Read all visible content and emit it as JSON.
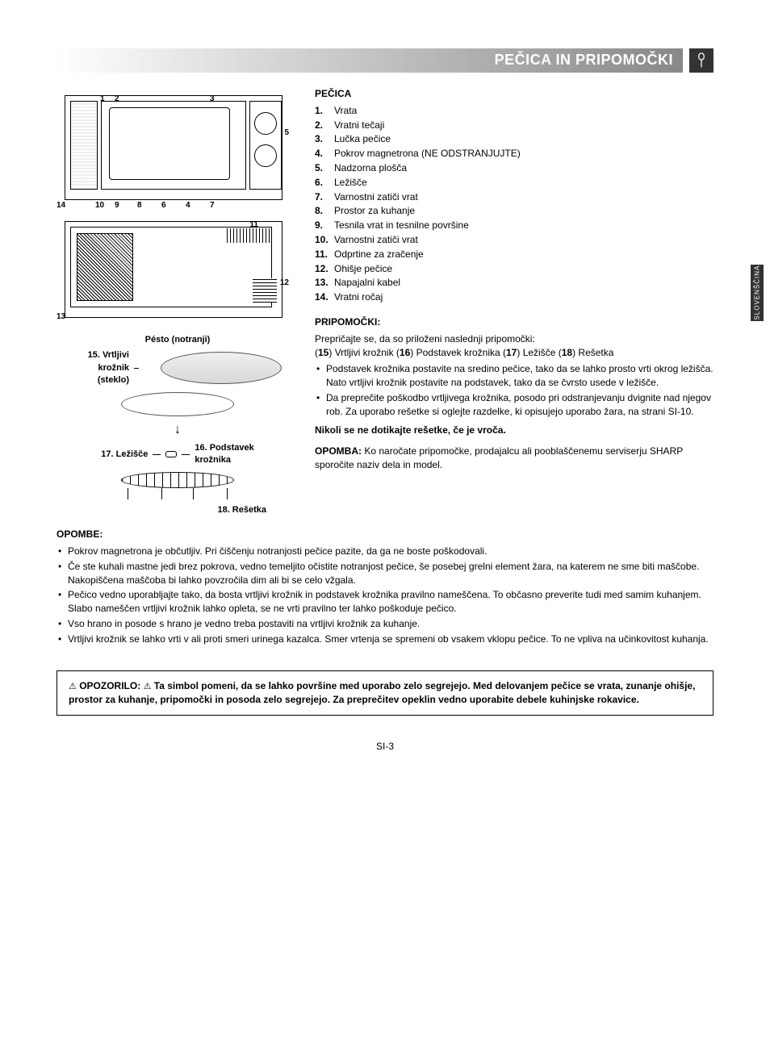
{
  "header": {
    "title": "PEČICA IN PRIPOMOČKI"
  },
  "sideTab": "SLOVENŠČINA",
  "oven": {
    "heading": "PEČICA",
    "items": [
      {
        "n": "1.",
        "t": "Vrata"
      },
      {
        "n": "2.",
        "t": "Vratni tečaji"
      },
      {
        "n": "3.",
        "t": "Lučka pečice"
      },
      {
        "n": "4.",
        "t": "Pokrov magnetrona (NE ODSTRANJUJTE)"
      },
      {
        "n": "5.",
        "t": "Nadzorna plošča"
      },
      {
        "n": "6.",
        "t": "Ležišče"
      },
      {
        "n": "7.",
        "t": "Varnostni zatiči vrat"
      },
      {
        "n": "8.",
        "t": "Prostor za kuhanje"
      },
      {
        "n": "9.",
        "t": "Tesnila vrat in tesnilne površine"
      },
      {
        "n": "10.",
        "t": "Varnostni zatiči vrat"
      },
      {
        "n": "11.",
        "t": "Odprtine za zračenje"
      },
      {
        "n": "12.",
        "t": "Ohišje pečice"
      },
      {
        "n": "13.",
        "t": "Napajalni kabel"
      },
      {
        "n": "14.",
        "t": "Vratni ročaj"
      }
    ]
  },
  "accessories": {
    "heading": "PRIPOMOČKI:",
    "intro1": "Prepričajte se, da so priloženi naslednji pripomočki:",
    "intro2": "(15) Vrtljivi krožnik (16) Podstavek krožnika (17) Ležišče (18) Rešetka",
    "bullets": [
      "Podstavek krožnika postavite na sredino pečice, tako da se lahko prosto vrti okrog ležišča. Nato vrtljivi krožnik postavite na podstavek, tako da se čvrsto usede v ležišče.",
      "Da preprečite poškodbo vrtljivega krožnika, posodo pri odstranjevanju dvignite nad njegov rob. Za uporabo rešetke si oglejte razdelke, ki opisujejo uporabo žara, na strani SI-10."
    ],
    "bold": "Nikoli se ne dotikajte rešetke, če je vroča.",
    "noteLabel": "OPOMBA:",
    "note": "Ko naročate pripomočke, prodajalcu ali pooblaščenemu serviserju SHARP sporočite naziv dela in model."
  },
  "diagramLabels": {
    "hub": "Pésto (notranji)",
    "p15a": "15. Vrtljivi",
    "p15b": "krožnik",
    "p15c": "(steklo)",
    "p17": "17. Ležišče",
    "p16a": "16. Podstavek",
    "p16b": "krožnika",
    "p18": "18. Rešetka",
    "nums": {
      "n1": "1",
      "n2": "2",
      "n3": "3",
      "n5": "5",
      "n14": "14",
      "n10": "10",
      "n9": "9",
      "n8": "8",
      "n6": "6",
      "n4": "4",
      "n7": "7",
      "n11": "11",
      "n12": "12",
      "n13": "13"
    }
  },
  "notes": {
    "heading": "OPOMBE:",
    "items": [
      "Pokrov magnetrona je občutljiv. Pri čiščenju notranjosti pečice pazite, da ga ne boste poškodovali.",
      "Če ste kuhali mastne jedi brez pokrova, vedno temeljito očistite notranjost pečice, še posebej grelni element žara, na katerem ne sme biti maščobe. Nakopiščena maščoba bi lahko povzročila dim ali bi se celo vžgala.",
      "Pečico vedno uporabljajte tako, da bosta vrtljivi krožnik in podstavek krožnika pravilno nameščena. To občasno preverite tudi med samim kuhanjem. Slabo nameščen vrtljivi krožnik lahko opleta, se ne vrti pravilno ter lahko poškoduje pečico.",
      "Vso hrano in posode s hrano je vedno treba postaviti na vrtljivi krožnik za kuhanje.",
      "Vrtljivi krožnik se lahko vrti v ali proti smeri urinega kazalca. Smer vrtenja se spremeni ob vsakem vklopu pečice. To ne vpliva na učinkovitost kuhanja."
    ]
  },
  "warning": {
    "label": "OPOZORILO:",
    "text": "Ta simbol pomeni, da se lahko površine med uporabo zelo segrejejo. Med delovanjem pečice se vrata, zunanje ohišje, prostor za kuhanje, pripomočki in posoda zelo segrejejo. Za preprečitev opeklin vedno uporabite debele kuhinjske rokavice."
  },
  "footer": "SI-3"
}
